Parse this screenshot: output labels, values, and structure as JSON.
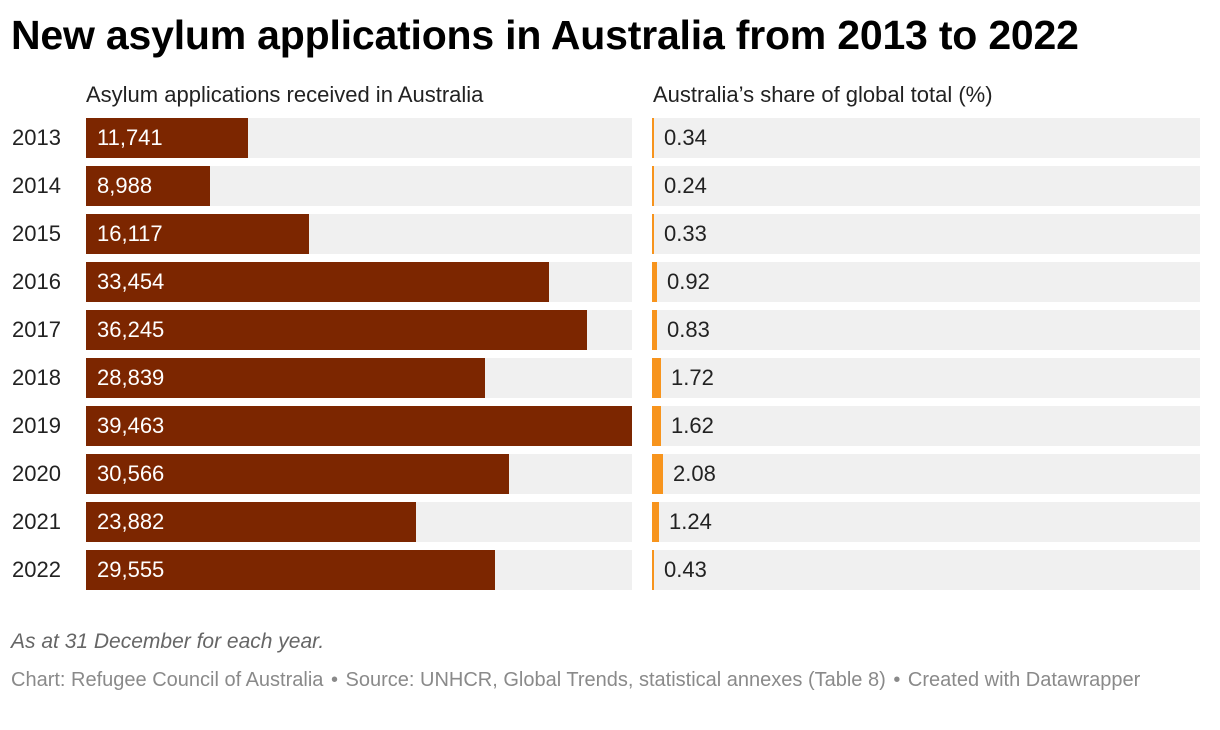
{
  "title": "New asylum applications in Australia from 2013 to 2022",
  "note": "As at 31 December for each year.",
  "footer": {
    "chart_credit": "Chart: Refugee Council of Australia",
    "source": "Source: UNHCR, Global Trends, statistical annexes (Table 8)",
    "created_with": "Created with Datawrapper",
    "separator": "•"
  },
  "colors": {
    "applications_bar": "#7c2600",
    "share_bar": "#f7941d",
    "track": "#f0f0f0"
  },
  "chart_data": {
    "type": "bar",
    "orientation": "horizontal",
    "categories": [
      "2013",
      "2014",
      "2015",
      "2016",
      "2017",
      "2018",
      "2019",
      "2020",
      "2021",
      "2022"
    ],
    "series": [
      {
        "name": "Asylum applications received in Australia",
        "values": [
          11741,
          8988,
          16117,
          33454,
          36245,
          28839,
          39463,
          30566,
          23882,
          29555
        ],
        "value_labels": [
          "11,741",
          "8,988",
          "16,117",
          "33,454",
          "36,245",
          "28,839",
          "39,463",
          "30,566",
          "23,882",
          "29,555"
        ],
        "xlim": [
          0,
          39463
        ]
      },
      {
        "name": "Australia’s share of global total (%)",
        "values": [
          0.34,
          0.24,
          0.33,
          0.92,
          0.83,
          1.72,
          1.62,
          2.08,
          1.24,
          0.43
        ],
        "value_labels": [
          "0.34",
          "0.24",
          "0.33",
          "0.92",
          "0.83",
          "1.72",
          "1.62",
          "2.08",
          "1.24",
          "0.43"
        ],
        "xlim": [
          0,
          100
        ]
      }
    ],
    "grid": false,
    "legend": "none"
  }
}
